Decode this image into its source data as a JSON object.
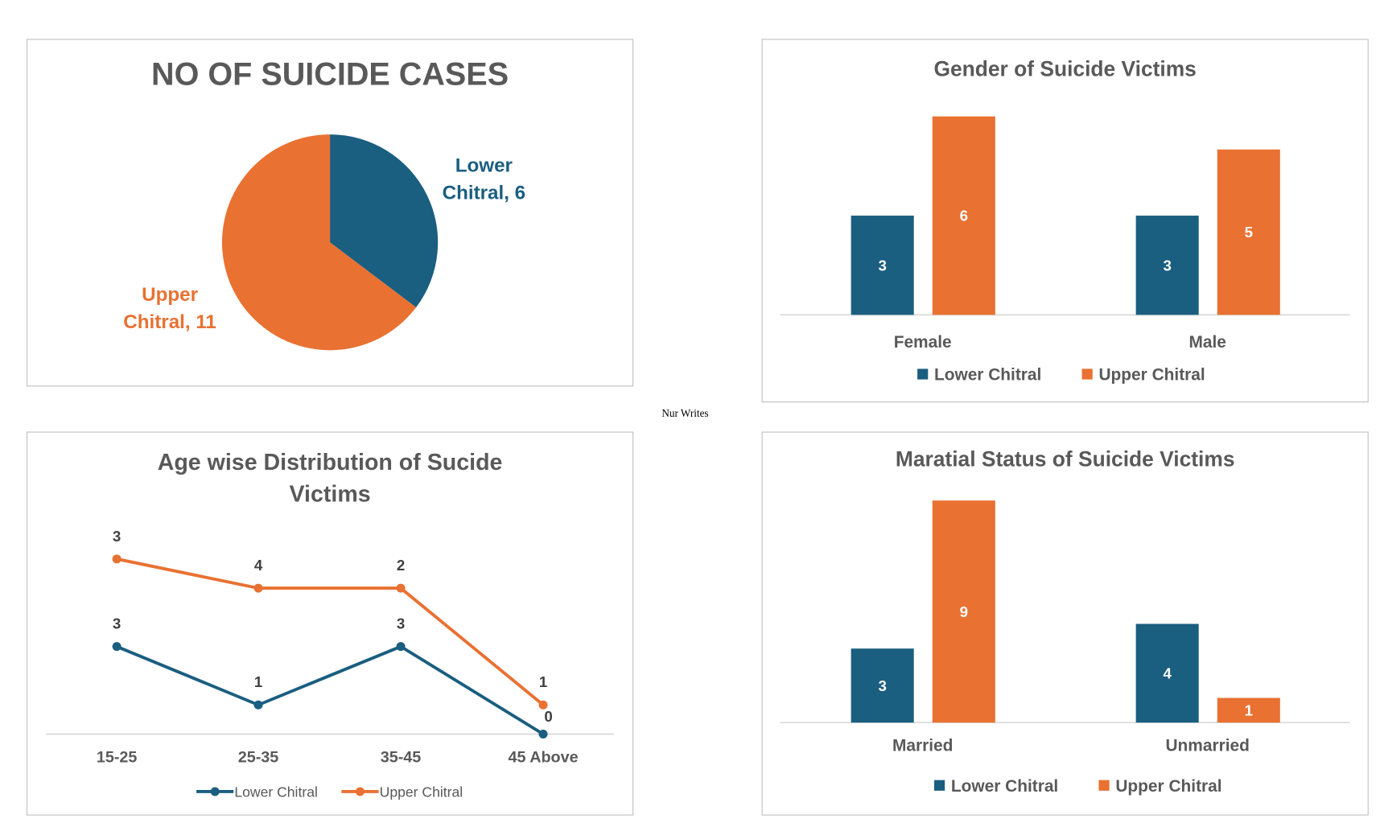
{
  "colors": {
    "lower": "#1a5e80",
    "upper": "#e97132",
    "text": "#595959",
    "axis": "#d9d9d9"
  },
  "watermark": "Nur Writes",
  "chart_data": [
    {
      "type": "pie",
      "title": "NO OF SUICIDE CASES",
      "slices": [
        {
          "name": "Lower Chitral",
          "value": 6,
          "label_line1": "Lower",
          "label_line2": "Chitral, 6"
        },
        {
          "name": "Upper Chitral",
          "value": 11,
          "label_line1": "Upper",
          "label_line2": "Chitral, 11"
        }
      ]
    },
    {
      "type": "bar",
      "title": "Gender of Suicide Victims",
      "categories": [
        "Female",
        "Male"
      ],
      "series": [
        {
          "name": "Lower Chitral",
          "values": [
            3,
            3
          ]
        },
        {
          "name": "Upper Chitral",
          "values": [
            6,
            5
          ]
        }
      ],
      "ylim": [
        0,
        6
      ]
    },
    {
      "type": "line",
      "stacked": true,
      "title_line1": "Age wise Distribution of Sucide",
      "title_line2": "Victims",
      "categories": [
        "15-25",
        "25-35",
        "35-45",
        "45 Above"
      ],
      "series": [
        {
          "name": "Lower Chitral",
          "values": [
            3,
            1,
            3,
            0
          ]
        },
        {
          "name": "Upper Chitral",
          "values": [
            3,
            4,
            2,
            1
          ]
        }
      ],
      "ylim": [
        0,
        6.5
      ]
    },
    {
      "type": "bar",
      "title": "Maratial Status of Suicide Victims",
      "categories": [
        "Married",
        "Unmarried"
      ],
      "series": [
        {
          "name": "Lower Chitral",
          "values": [
            3,
            4
          ]
        },
        {
          "name": "Upper Chitral",
          "values": [
            9,
            1
          ]
        }
      ],
      "ylim": [
        0,
        9
      ]
    }
  ]
}
